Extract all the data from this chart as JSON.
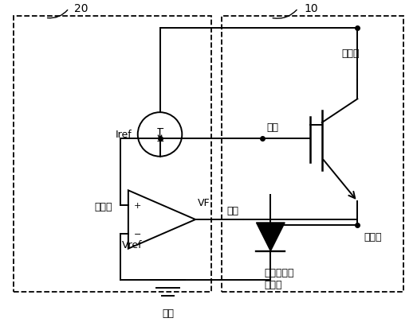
{
  "background_color": "#ffffff",
  "line_color": "#000000",
  "label_20": "20",
  "label_10": "10",
  "label_jidianji": "集电极",
  "label_shejiji": "栅极",
  "label_yangjiji": "阳极",
  "label_fashejiji": "发射极",
  "label_wenshuchuanganqi": "温度传感器",
  "label_erjiguan": "二极管",
  "label_yinjiji": "阴极",
  "label_bijjiaoqi": "比较器",
  "label_iref": "Iref",
  "label_vf": "VF",
  "label_vref": "Vref",
  "figsize": [
    5.23,
    4.06
  ],
  "dpi": 100
}
